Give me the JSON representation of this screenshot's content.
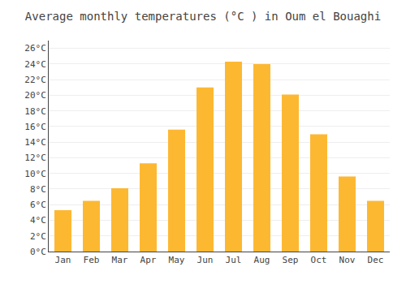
{
  "chart_data": {
    "type": "bar",
    "title": "Average monthly temperatures (°C ) in Oum el Bouaghi",
    "categories": [
      "Jan",
      "Feb",
      "Mar",
      "Apr",
      "May",
      "Jun",
      "Jul",
      "Aug",
      "Sep",
      "Oct",
      "Nov",
      "Dec"
    ],
    "values": [
      5.3,
      6.5,
      8.1,
      11.3,
      15.6,
      21.0,
      24.3,
      24.0,
      20.1,
      15.0,
      9.6,
      6.5
    ],
    "color": "#FDB832",
    "ylim": [
      0,
      27
    ],
    "yticks": [
      {
        "value": 0,
        "label": "0°C"
      },
      {
        "value": 2,
        "label": "2°C"
      },
      {
        "value": 4,
        "label": "4°C"
      },
      {
        "value": 6,
        "label": "6°C"
      },
      {
        "value": 8,
        "label": "8°C"
      },
      {
        "value": 10,
        "label": "10°C"
      },
      {
        "value": 12,
        "label": "12°C"
      },
      {
        "value": 14,
        "label": "14°C"
      },
      {
        "value": 16,
        "label": "16°C"
      },
      {
        "value": 18,
        "label": "18°C"
      },
      {
        "value": 20,
        "label": "20°C"
      },
      {
        "value": 22,
        "label": "22°C"
      },
      {
        "value": 24,
        "label": "24°C"
      },
      {
        "value": 26,
        "label": "26°C"
      }
    ],
    "grid": true
  }
}
